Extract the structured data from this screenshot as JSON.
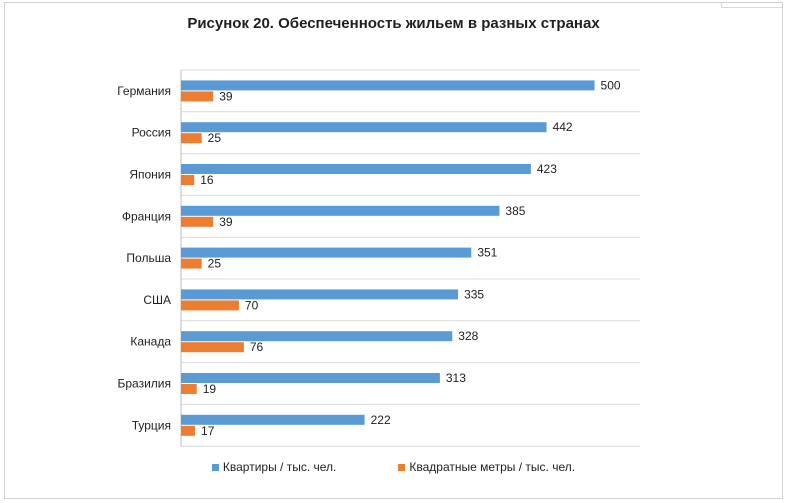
{
  "chart_data": {
    "type": "bar",
    "orientation": "horizontal",
    "title": "Рисунок 20. Обеспеченность жильем в разных странах",
    "categories": [
      "Германия",
      "Россия",
      "Япония",
      "Франция",
      "Польша",
      "США",
      "Канада",
      "Бразилия",
      "Турция"
    ],
    "series": [
      {
        "name": "Квартиры / тыс. чел.",
        "color": "#5b9bd5",
        "values": [
          500,
          442,
          423,
          385,
          351,
          335,
          328,
          313,
          222
        ]
      },
      {
        "name": "Квадратные метры / тыс. чел.",
        "color": "#ed7d31",
        "values": [
          39,
          25,
          16,
          39,
          25,
          70,
          76,
          19,
          17
        ]
      }
    ],
    "xlim": [
      0,
      500
    ],
    "grid": true,
    "legend_position": "bottom",
    "data_labels": true
  }
}
